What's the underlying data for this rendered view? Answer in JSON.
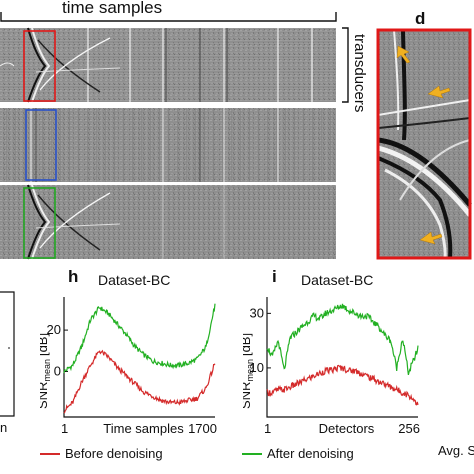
{
  "top": {
    "time_samples_label": "time samples",
    "transducers_label": "transducers",
    "panel_d_letter": "d"
  },
  "panel_h": {
    "letter": "h",
    "title": "Dataset-BC",
    "ylabel_prefix": "SNR",
    "ylabel_sub": "mean",
    "ylabel_unit": "[dB]",
    "xlabel": "Time samples",
    "x_start_label": "1",
    "x_end_label": "1700",
    "y_ticks": [
      "20",
      "0"
    ]
  },
  "panel_i": {
    "letter": "i",
    "title": "Dataset-BC",
    "ylabel_prefix": "SNR",
    "ylabel_sub": "mean",
    "ylabel_unit": "[dB]",
    "xlabel": "Detectors",
    "x_start_label": "1",
    "x_end_label": "256",
    "y_ticks": [
      "30",
      "10"
    ]
  },
  "partial_left": {
    "x_fragment": "n"
  },
  "partial_right": {
    "text_fragment": "Avg. S"
  },
  "legend": {
    "before": "Before denoising",
    "after": "After denoising",
    "before_color": "#d42a2a",
    "after_color": "#22b022"
  },
  "chart_data": [
    {
      "type": "line",
      "panel": "h",
      "title": "Dataset-BC",
      "xlabel": "Time samples",
      "ylabel": "SNR mean [dB]",
      "xlim": [
        1,
        1700
      ],
      "ylim": [
        -22,
        36
      ],
      "x": [
        1,
        100,
        200,
        300,
        400,
        500,
        600,
        700,
        800,
        900,
        1000,
        1100,
        1200,
        1300,
        1400,
        1500,
        1600,
        1700
      ],
      "series": [
        {
          "name": "After denoising",
          "color": "#22b022",
          "values": [
            0,
            3,
            12,
            25,
            31,
            28,
            23,
            18,
            12,
            8,
            5,
            4,
            3,
            3,
            4,
            6,
            12,
            32
          ]
        },
        {
          "name": "Before denoising",
          "color": "#d42a2a",
          "values": [
            -19,
            -15,
            -5,
            3,
            10,
            7,
            2,
            -2,
            -6,
            -10,
            -12,
            -14,
            -15,
            -15,
            -14,
            -13,
            -8,
            4
          ]
        }
      ]
    },
    {
      "type": "line",
      "panel": "i",
      "title": "Dataset-BC",
      "xlabel": "Detectors",
      "ylabel": "SNR mean [dB]",
      "xlim": [
        1,
        256
      ],
      "ylim": [
        -8,
        36
      ],
      "x": [
        1,
        10,
        20,
        30,
        40,
        50,
        60,
        70,
        80,
        90,
        100,
        110,
        120,
        128,
        140,
        150,
        160,
        170,
        180,
        190,
        200,
        210,
        220,
        230,
        240,
        256
      ],
      "series": [
        {
          "name": "After denoising",
          "color": "#22b022",
          "values": [
            18,
            14,
            20,
            9,
            21,
            23,
            25,
            27,
            29,
            28,
            30,
            31,
            32,
            33,
            31,
            30,
            29,
            29,
            27,
            25,
            22,
            20,
            10,
            21,
            8,
            17
          ]
        },
        {
          "name": "Before denoising",
          "color": "#d42a2a",
          "values": [
            1,
            1,
            2,
            2,
            3,
            4,
            5,
            6,
            7,
            8,
            9,
            9,
            10,
            10,
            9,
            9,
            8,
            7,
            6,
            5,
            4,
            3,
            2,
            1,
            0,
            -3
          ]
        }
      ]
    }
  ]
}
